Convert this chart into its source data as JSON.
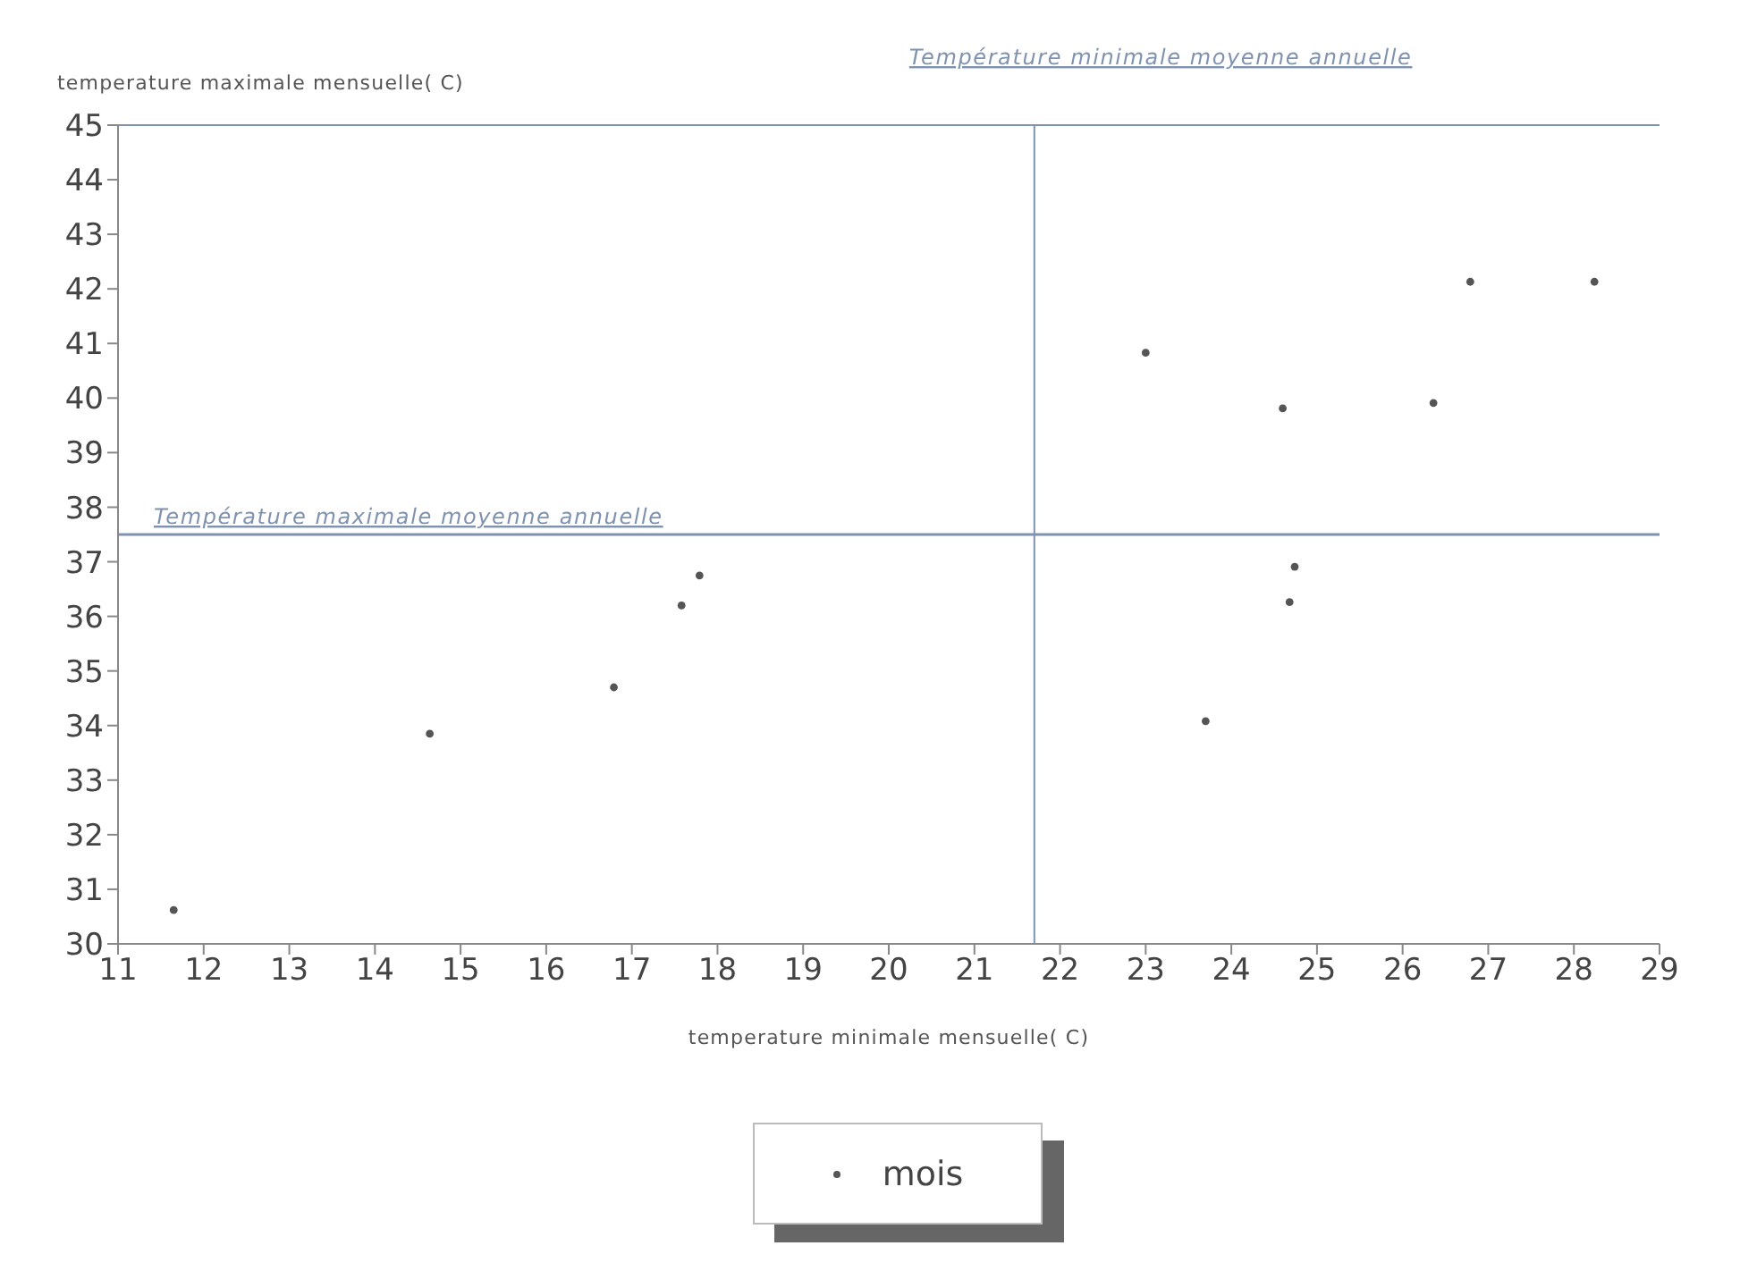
{
  "chart_data": {
    "type": "scatter",
    "xlabel": "temperature minimale mensuelle( C)",
    "ylabel": "temperature maximale mensuelle( C)",
    "x": [
      11.65,
      14.64,
      16.79,
      17.58,
      17.79,
      23.0,
      26.79,
      28.24,
      26.36,
      24.6,
      24.74,
      24.68,
      23.7
    ],
    "series": [
      {
        "name": "mois",
        "color": "#555555",
        "values": [
          30.62,
          33.85,
          34.7,
          36.2,
          36.75,
          40.83,
          42.13,
          42.13,
          39.91,
          39.81,
          36.91,
          36.26,
          34.08
        ]
      }
    ],
    "marker": "circle",
    "xlim": [
      11,
      29
    ],
    "xticks": [
      11,
      12,
      13,
      14,
      15,
      16,
      17,
      18,
      19,
      20,
      21,
      22,
      23,
      24,
      25,
      26,
      27,
      28,
      29
    ],
    "ylim": [
      30,
      45
    ],
    "yticks": [
      30,
      31,
      32,
      33,
      34,
      35,
      36,
      37,
      38,
      39,
      40,
      41,
      42,
      43,
      44,
      45
    ],
    "ref_lines": [
      {
        "axis": "y",
        "value": 37.5,
        "label": "Température maximale moyenne annuelle",
        "color": "#7f93b0"
      },
      {
        "axis": "x",
        "value": 21.7,
        "label": "Température minimale moyenne annuelle",
        "color": "#7f93b0"
      }
    ],
    "grid": false,
    "legend": "bottom"
  }
}
